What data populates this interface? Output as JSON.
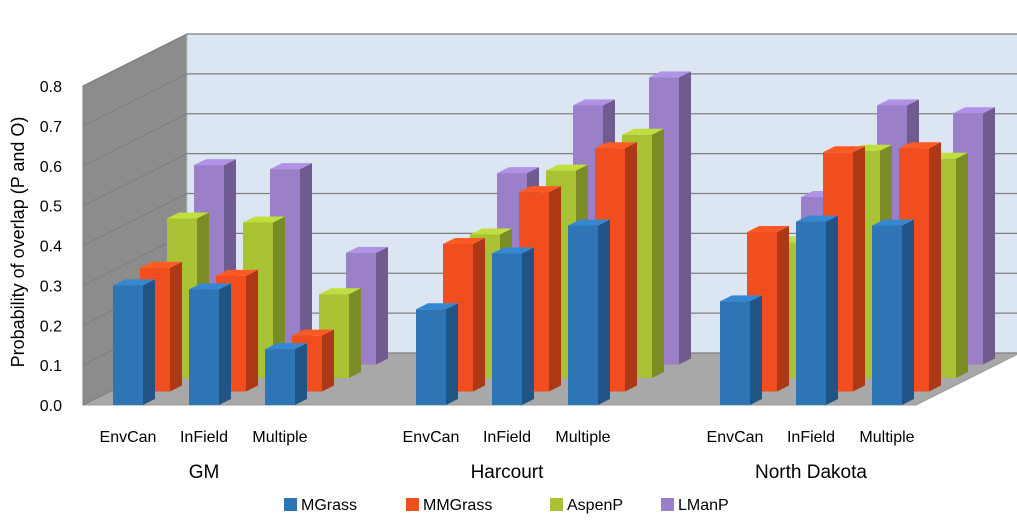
{
  "chart_data": {
    "type": "bar",
    "ylabel": "Probability of overlap (P and O)",
    "ylim": [
      0,
      0.8
    ],
    "y_ticks": [
      "0.0",
      "0.1",
      "0.2",
      "0.3",
      "0.4",
      "0.5",
      "0.6",
      "0.7",
      "0.8"
    ],
    "grid": true,
    "legend_placement": "bottom",
    "groups": [
      {
        "name": "GM",
        "categories": [
          "EnvCan",
          "InField",
          "Multiple"
        ]
      },
      {
        "name": "Harcourt",
        "categories": [
          "EnvCan",
          "InField",
          "Multiple"
        ]
      },
      {
        "name": "North Dakota",
        "categories": [
          "EnvCan",
          "InField",
          "Multiple"
        ]
      }
    ],
    "series": [
      {
        "name": "MGrass",
        "color": "#2E75B6",
        "values": [
          [
            0.3,
            0.29,
            0.14
          ],
          [
            0.24,
            0.38,
            0.45
          ],
          [
            0.26,
            0.46,
            0.45
          ]
        ]
      },
      {
        "name": "MMGrass",
        "color": "#F04E1E",
        "values": [
          [
            0.31,
            0.29,
            0.14
          ],
          [
            0.37,
            0.5,
            0.61
          ],
          [
            0.4,
            0.6,
            0.61
          ]
        ]
      },
      {
        "name": "AspenP",
        "color": "#A8C234",
        "values": [
          [
            0.4,
            0.39,
            0.21
          ],
          [
            0.36,
            0.52,
            0.61
          ],
          [
            0.34,
            0.57,
            0.55
          ]
        ]
      },
      {
        "name": "LManP",
        "color": "#9B7FC9",
        "values": [
          [
            0.5,
            0.49,
            0.28
          ],
          [
            0.48,
            0.65,
            0.72
          ],
          [
            0.42,
            0.65,
            0.63
          ]
        ]
      }
    ]
  }
}
